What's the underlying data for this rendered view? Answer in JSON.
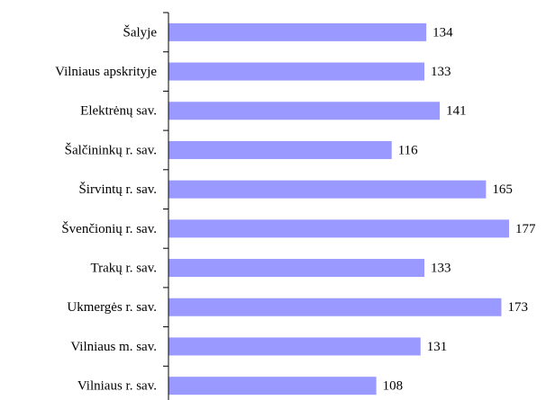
{
  "chart_data": {
    "type": "bar",
    "orientation": "horizontal",
    "categories": [
      "Šalyje",
      "Vilniaus apskrityje",
      "Elektrėnų sav.",
      "Šalčininkų r. sav.",
      "Širvintų r. sav.",
      "Švenčionių r. sav.",
      "Trakų r. sav.",
      "Ukmergės r. sav.",
      "Vilniaus m. sav.",
      "Vilniaus r. sav."
    ],
    "values": [
      134,
      133,
      141,
      116,
      165,
      177,
      133,
      173,
      131,
      108
    ],
    "color": "#9999ff"
  }
}
